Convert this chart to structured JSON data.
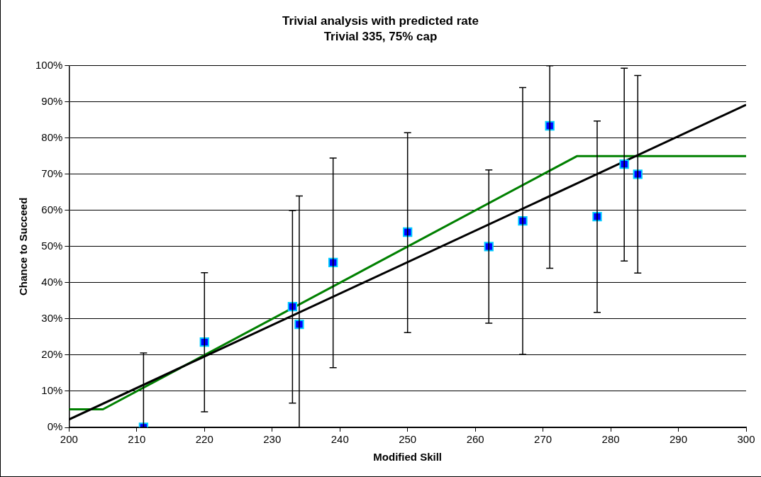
{
  "chart_data": {
    "type": "scatter",
    "title": "Trivial analysis with predicted rate",
    "subtitle": "Trivial 335, 75% cap",
    "xlabel": "Modified Skill",
    "ylabel": "Chance to Succeed",
    "xlim": [
      200,
      300
    ],
    "xticks": [
      200,
      210,
      220,
      230,
      240,
      250,
      260,
      270,
      280,
      290,
      300
    ],
    "ylim": [
      0,
      100
    ],
    "yticks": [
      {
        "value": 0,
        "label": "0%"
      },
      {
        "value": 10,
        "label": "10%"
      },
      {
        "value": 20,
        "label": "20%"
      },
      {
        "value": 30,
        "label": "30%"
      },
      {
        "value": 40,
        "label": "40%"
      },
      {
        "value": 50,
        "label": "50%"
      },
      {
        "value": 60,
        "label": "60%"
      },
      {
        "value": 70,
        "label": "70%"
      },
      {
        "value": 80,
        "label": "80%"
      },
      {
        "value": 90,
        "label": "90%"
      },
      {
        "value": 100,
        "label": "100%"
      }
    ],
    "grid": "y",
    "legend": false,
    "series": [
      {
        "type": "line",
        "color": "#000000",
        "marker": "none",
        "x": [
          200,
          300
        ],
        "values": [
          2.2,
          89.2
        ]
      },
      {
        "type": "line",
        "color": "#008000",
        "marker": "none",
        "x": [
          200,
          205,
          275,
          300
        ],
        "values": [
          5,
          5,
          75,
          75
        ]
      },
      {
        "color": "#0000ff",
        "marker": "square",
        "x": [
          211,
          220,
          233,
          234,
          239,
          250,
          262,
          267,
          271,
          278,
          282,
          284
        ],
        "values": [
          0,
          23.6,
          33.4,
          28.5,
          45.6,
          54,
          50,
          57.1,
          83.4,
          58.3,
          72.8,
          70
        ],
        "errors": [
          [
            0,
            20.6
          ],
          [
            4.3,
            42.8
          ],
          [
            6.7,
            60
          ],
          [
            0,
            64
          ],
          [
            16.5,
            74.5
          ],
          [
            26.2,
            81.5
          ],
          [
            28.8,
            71.2
          ],
          [
            20.2,
            94
          ],
          [
            44,
            100
          ],
          [
            31.8,
            84.7
          ],
          [
            46,
            99.3
          ],
          [
            42.7,
            97.3
          ]
        ]
      }
    ]
  }
}
